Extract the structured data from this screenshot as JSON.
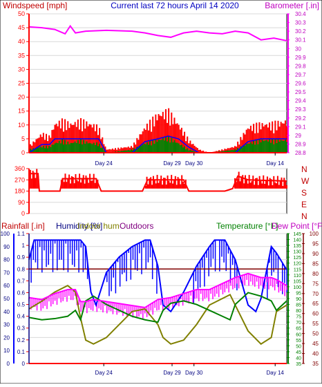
{
  "header": {
    "left_title": "Windspeed [mph]",
    "center_title": "Current last 72 hours April 14 2020",
    "right_title": "Barometer [.in]"
  },
  "colors": {
    "red": "#ff0000",
    "magenta": "#ff00ff",
    "blue": "#0000ff",
    "green": "#008000",
    "olive": "#808000",
    "darkred": "#800000",
    "navy": "#000080",
    "wind_axis": "#c00000",
    "baro_axis": "#c000c0"
  },
  "chart_data": [
    {
      "type": "line",
      "title": "Current last 72 hours April 14 2020",
      "y_left": {
        "label": "Windspeed [mph]",
        "range": [
          0,
          50
        ],
        "ticks": [
          "0",
          "5",
          "10",
          "15",
          "20",
          "25",
          "30",
          "35",
          "40",
          "45",
          "50"
        ]
      },
      "y_right": {
        "label": "Barometer [.in]",
        "range": [
          28.8,
          30.4
        ],
        "ticks": [
          "28.8",
          "28.9",
          "29",
          "29.1",
          "29.2",
          "29.3",
          "29.4",
          "29.5",
          "29.6",
          "29.7",
          "29.8",
          "29.9",
          "30",
          "30.1",
          "30.2",
          "30.3",
          "30.4"
        ]
      },
      "x_ticks": [
        "Day 24",
        "Day 29",
        "Day 30",
        "Day 14"
      ],
      "x_tick_positions": [
        0.29,
        0.555,
        0.64,
        0.955
      ],
      "grid": true,
      "series": [
        {
          "name": "Windspeed [mph]",
          "color": "red",
          "kind": "bars",
          "x": [
            0,
            0.05,
            0.08,
            0.1,
            0.13,
            0.16,
            0.2,
            0.24,
            0.27,
            0.3,
            0.4,
            0.45,
            0.5,
            0.54,
            0.58,
            0.62,
            0.66,
            0.7,
            0.8,
            0.85,
            0.9,
            0.94,
            1.0
          ],
          "y": [
            2,
            6,
            5,
            9,
            10,
            9,
            10,
            9,
            8,
            1,
            2,
            8,
            12,
            13,
            9,
            4,
            1,
            0,
            2,
            8,
            9,
            9,
            10
          ]
        },
        {
          "name": "Wind average",
          "color": "blue",
          "kind": "line",
          "x": [
            0,
            0.05,
            0.08,
            0.1,
            0.13,
            0.16,
            0.2,
            0.24,
            0.27,
            0.3,
            0.4,
            0.45,
            0.5,
            0.54,
            0.58,
            0.62,
            0.66,
            0.7,
            0.8,
            0.85,
            0.9,
            0.94,
            1.0
          ],
          "y": [
            0,
            3,
            3,
            5,
            5,
            5,
            5,
            5,
            5,
            0,
            0,
            4,
            5,
            6,
            5,
            2,
            0,
            0,
            0,
            4,
            5,
            5,
            5
          ]
        },
        {
          "name": "Gust",
          "color": "green",
          "kind": "bars",
          "x": [
            0,
            0.05,
            0.08,
            0.1,
            0.13,
            0.16,
            0.2,
            0.24,
            0.27,
            0.3,
            0.4,
            0.45,
            0.5,
            0.54,
            0.58,
            0.62,
            0.66,
            0.7,
            0.8,
            0.85,
            0.9,
            0.94,
            1.0
          ],
          "y": [
            1,
            2,
            2,
            3,
            4,
            3,
            4,
            3,
            3,
            0,
            1,
            3,
            4,
            5,
            3,
            1,
            0,
            0,
            1,
            3,
            4,
            4,
            4
          ]
        },
        {
          "name": "Barometer [.in]",
          "color": "magenta",
          "kind": "line",
          "x": [
            0,
            0.05,
            0.1,
            0.14,
            0.16,
            0.18,
            0.22,
            0.3,
            0.4,
            0.45,
            0.5,
            0.55,
            0.6,
            0.65,
            0.7,
            0.75,
            0.8,
            0.85,
            0.9,
            0.95,
            1.0
          ],
          "y": [
            30.25,
            30.24,
            30.22,
            30.17,
            30.26,
            30.18,
            30.2,
            30.21,
            30.2,
            30.18,
            30.15,
            30.13,
            30.18,
            30.2,
            30.18,
            30.17,
            30.2,
            30.18,
            30.1,
            30.12,
            30.09
          ]
        }
      ]
    },
    {
      "type": "line",
      "title": "",
      "y_left": {
        "label": "",
        "range": [
          0,
          360
        ],
        "ticks": [
          "0",
          "90",
          "180",
          "270",
          "360"
        ]
      },
      "y_right_labels": [
        "N",
        "W",
        "S",
        "E",
        "N"
      ],
      "x_ticks": [],
      "grid": true,
      "series": [
        {
          "name": "Wind direction",
          "color": "red",
          "kind": "line",
          "x": [
            0,
            0.035,
            0.04,
            0.12,
            0.13,
            0.26,
            0.28,
            0.44,
            0.46,
            0.6,
            0.62,
            0.76,
            0.79,
            0.81,
            0.85,
            1.0
          ],
          "y": [
            320,
            320,
            180,
            180,
            280,
            280,
            180,
            180,
            270,
            270,
            180,
            180,
            200,
            300,
            270,
            260
          ]
        }
      ]
    },
    {
      "type": "line",
      "title": "",
      "legend": [
        "Rainfall [.in]",
        "Humidity [%]",
        "Indoor hum",
        "Outdoors",
        "Temperature [°F]",
        "Dew Point [°F]"
      ],
      "y_left_rain": {
        "label": "Rainfall [.in]",
        "range": [
          0,
          1.1
        ],
        "ticks": [
          "0",
          "0.1",
          "0.2",
          "0.3",
          "0.4",
          "0.5",
          "0.6",
          "0.7",
          "0.8",
          "0.9",
          "1",
          "1.1"
        ]
      },
      "y_left_humidity": {
        "label": "Humidity [%]",
        "range": [
          0,
          100
        ],
        "ticks": [
          "0",
          "10",
          "20",
          "30",
          "40",
          "50",
          "60",
          "70",
          "80",
          "90",
          "100"
        ]
      },
      "y_right_temp": {
        "label": "Temperature [°F]",
        "range": [
          35,
          145
        ],
        "ticks": [
          "35",
          "40",
          "45",
          "50",
          "55",
          "60",
          "65",
          "70",
          "75",
          "80",
          "85",
          "90",
          "95",
          "100",
          "105",
          "110",
          "115",
          "120",
          "125",
          "130",
          "135",
          "140",
          "145"
        ]
      },
      "y_right_dew": {
        "label": "Dew Point [°F]",
        "range": [
          35,
          100
        ],
        "ticks": [
          "35",
          "40",
          "45",
          "50",
          "55",
          "60",
          "65",
          "70",
          "75",
          "80",
          "85",
          "90",
          "95",
          "100"
        ]
      },
      "x_ticks": [
        "Day 24",
        "Day 29",
        "Day 30",
        "Day 14"
      ],
      "x_tick_positions": [
        0.29,
        0.555,
        0.64,
        0.955
      ],
      "grid": true,
      "series": [
        {
          "name": "Humidity [%]",
          "color": "blue",
          "kind": "line",
          "x": [
            0,
            0.02,
            0.2,
            0.22,
            0.24,
            0.26,
            0.3,
            0.35,
            0.4,
            0.45,
            0.47,
            0.5,
            0.52,
            0.55,
            0.6,
            0.65,
            0.7,
            0.72,
            0.76,
            0.8,
            0.85,
            0.88,
            0.9,
            0.94,
            0.96,
            1.0
          ],
          "y": [
            80,
            95,
            95,
            90,
            55,
            45,
            70,
            82,
            90,
            95,
            95,
            75,
            45,
            40,
            55,
            75,
            90,
            95,
            95,
            80,
            45,
            40,
            50,
            90,
            85,
            72
          ]
        },
        {
          "name": "Rainfall [.in]",
          "color": "darkred",
          "kind": "line",
          "x": [
            0,
            1
          ],
          "y": [
            0.8,
            0.8
          ]
        },
        {
          "name": "Indoor hum",
          "color": "olive",
          "kind": "line",
          "x": [
            0,
            0.05,
            0.1,
            0.15,
            0.18,
            0.2,
            0.22,
            0.25,
            0.3,
            0.35,
            0.4,
            0.45,
            0.5,
            0.52,
            0.55,
            0.6,
            0.65,
            0.7,
            0.75,
            0.78,
            0.8,
            0.85,
            0.9,
            0.94,
            0.96,
            1.0
          ],
          "y": [
            42,
            48,
            55,
            60,
            55,
            35,
            18,
            15,
            20,
            30,
            40,
            42,
            30,
            20,
            15,
            18,
            30,
            45,
            50,
            53,
            45,
            25,
            15,
            20,
            40,
            45
          ]
        },
        {
          "name": "Temperature [°F]",
          "color": "green",
          "kind": "line",
          "x": [
            0,
            0.05,
            0.1,
            0.15,
            0.18,
            0.2,
            0.22,
            0.25,
            0.3,
            0.35,
            0.4,
            0.45,
            0.5,
            0.52,
            0.55,
            0.6,
            0.65,
            0.7,
            0.75,
            0.78,
            0.8,
            0.85,
            0.9,
            0.94,
            0.96,
            1.0
          ],
          "y": [
            74,
            72,
            73,
            75,
            80,
            72,
            88,
            92,
            85,
            80,
            75,
            72,
            70,
            80,
            86,
            88,
            85,
            80,
            75,
            72,
            85,
            95,
            92,
            88,
            80,
            88
          ]
        },
        {
          "name": "Dew Point [°F]",
          "color": "magenta",
          "kind": "line",
          "x": [
            0,
            0.05,
            0.1,
            0.15,
            0.18,
            0.2,
            0.22,
            0.25,
            0.3,
            0.35,
            0.4,
            0.45,
            0.5,
            0.55,
            0.6,
            0.65,
            0.7,
            0.75,
            0.8,
            0.85,
            0.9,
            0.94,
            0.96,
            1.0
          ],
          "y": [
            68,
            67,
            70,
            72,
            72,
            66,
            66,
            67,
            66,
            65,
            64,
            63,
            67,
            68,
            70,
            72,
            72,
            75,
            78,
            80,
            78,
            78,
            77,
            74
          ]
        }
      ]
    }
  ]
}
